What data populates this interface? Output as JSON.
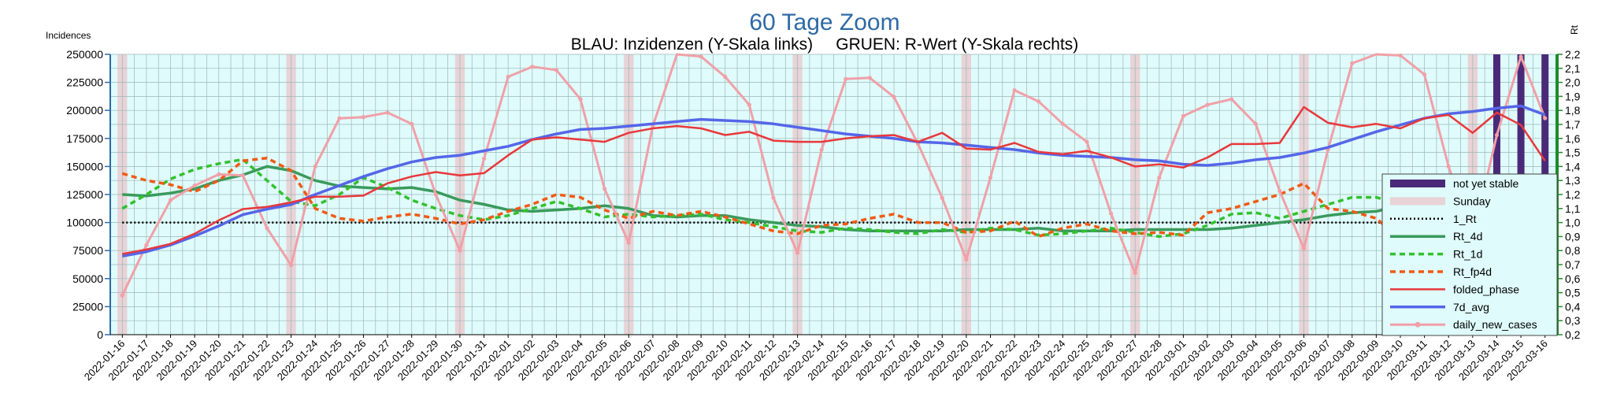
{
  "chart_data": {
    "type": "line",
    "title": "60 Tage Zoom",
    "subtitle": "BLAU: Inzidenzen (Y-Skala links)     GRUEN: R-Wert (Y-Skala rechts)",
    "ylabel_left": "Incidences",
    "ylabel_right": "Rt",
    "ylim_left": [
      0,
      250000
    ],
    "yticks_left": [
      "0",
      "25000",
      "50000",
      "75000",
      "100000",
      "125000",
      "150000",
      "175000",
      "200000",
      "225000",
      "250000"
    ],
    "ylim_right": [
      0.2,
      2.2
    ],
    "yticks_right": [
      "0,2",
      "0,3",
      "0,4",
      "0,5",
      "0,6",
      "0,7",
      "0,8",
      "0,9",
      "1,0",
      "1,1",
      "1,2",
      "1,3",
      "1,4",
      "1,5",
      "1,6",
      "1,7",
      "1,8",
      "1,9",
      "2,0",
      "2,1",
      "2,2"
    ],
    "grid": true,
    "legend_position": "right",
    "categories": [
      "2022-01-16",
      "2022-01-17",
      "2022-01-18",
      "2022-01-19",
      "2022-01-20",
      "2022-01-21",
      "2022-01-22",
      "2022-01-23",
      "2022-01-24",
      "2022-01-25",
      "2022-01-26",
      "2022-01-27",
      "2022-01-28",
      "2022-01-29",
      "2022-01-30",
      "2022-01-31",
      "2022-02-01",
      "2022-02-02",
      "2022-02-03",
      "2022-02-04",
      "2022-02-05",
      "2022-02-06",
      "2022-02-07",
      "2022-02-08",
      "2022-02-09",
      "2022-02-10",
      "2022-02-11",
      "2022-02-12",
      "2022-02-13",
      "2022-02-14",
      "2022-02-15",
      "2022-02-16",
      "2022-02-17",
      "2022-02-18",
      "2022-02-19",
      "2022-02-20",
      "2022-02-21",
      "2022-02-22",
      "2022-02-23",
      "2022-02-24",
      "2022-02-25",
      "2022-02-26",
      "2022-02-27",
      "2022-02-28",
      "2022-03-01",
      "2022-03-02",
      "2022-03-03",
      "2022-03-04",
      "2022-03-05",
      "2022-03-06",
      "2022-03-07",
      "2022-03-08",
      "2022-03-09",
      "2022-03-10",
      "2022-03-11",
      "2022-03-12",
      "2022-03-13",
      "2022-03-14",
      "2022-03-15",
      "2022-03-16"
    ],
    "sundays": [
      "2022-01-16",
      "2022-01-23",
      "2022-01-30",
      "2022-02-06",
      "2022-02-13",
      "2022-02-20",
      "2022-02-27",
      "2022-03-06",
      "2022-03-13"
    ],
    "not_yet_stable": [
      "2022-03-14",
      "2022-03-15",
      "2022-03-16"
    ],
    "series": [
      {
        "name": "1_Rt",
        "axis": "right",
        "color": "#000000",
        "style": "dotted",
        "values": [
          1.0,
          1.0,
          1.0,
          1.0,
          1.0,
          1.0,
          1.0,
          1.0,
          1.0,
          1.0,
          1.0,
          1.0,
          1.0,
          1.0,
          1.0,
          1.0,
          1.0,
          1.0,
          1.0,
          1.0,
          1.0,
          1.0,
          1.0,
          1.0,
          1.0,
          1.0,
          1.0,
          1.0,
          1.0,
          1.0,
          1.0,
          1.0,
          1.0,
          1.0,
          1.0,
          1.0,
          1.0,
          1.0,
          1.0,
          1.0,
          1.0,
          1.0,
          1.0,
          1.0,
          1.0,
          1.0,
          1.0,
          1.0,
          1.0,
          1.0,
          1.0,
          1.0,
          1.0,
          1.0,
          1.0,
          1.0,
          1.0,
          1.0,
          1.0,
          1.0
        ]
      },
      {
        "name": "Rt_4d",
        "axis": "right",
        "color": "#3a9a5c",
        "style": "solid",
        "values": [
          1.2,
          1.19,
          1.21,
          1.24,
          1.3,
          1.34,
          1.4,
          1.37,
          1.3,
          1.26,
          1.25,
          1.24,
          1.25,
          1.22,
          1.16,
          1.13,
          1.09,
          1.08,
          1.09,
          1.1,
          1.12,
          1.1,
          1.05,
          1.04,
          1.05,
          1.05,
          1.02,
          1.0,
          0.98,
          0.97,
          0.95,
          0.94,
          0.94,
          0.94,
          0.94,
          0.95,
          0.95,
          0.95,
          0.96,
          0.94,
          0.94,
          0.94,
          0.95,
          0.95,
          0.95,
          0.95,
          0.96,
          0.98,
          1.0,
          1.02,
          1.05,
          1.07,
          1.08,
          1.12,
          1.14,
          1.15,
          1.13,
          1.09,
          1.05,
          1.02
        ]
      },
      {
        "name": "Rt_1d",
        "axis": "right",
        "color": "#33c12d",
        "style": "dashed",
        "values": [
          1.1,
          1.2,
          1.31,
          1.38,
          1.42,
          1.45,
          1.3,
          1.15,
          1.12,
          1.2,
          1.32,
          1.25,
          1.16,
          1.1,
          1.05,
          1.02,
          1.05,
          1.1,
          1.15,
          1.1,
          1.04,
          1.06,
          1.04,
          1.05,
          1.06,
          1.02,
          1.0,
          0.97,
          0.94,
          0.93,
          0.96,
          0.95,
          0.93,
          0.92,
          0.95,
          0.93,
          0.96,
          0.95,
          0.91,
          0.92,
          0.94,
          0.96,
          0.93,
          0.9,
          0.92,
          0.98,
          1.06,
          1.07,
          1.03,
          1.08,
          1.13,
          1.18,
          1.18,
          1.13,
          1.14,
          1.14,
          1.08,
          1.04,
          1.06,
          0.86
        ]
      },
      {
        "name": "Rt_fp4d",
        "axis": "right",
        "color": "#f05a14",
        "style": "dashed",
        "values": [
          1.35,
          1.3,
          1.27,
          1.22,
          1.3,
          1.44,
          1.46,
          1.37,
          1.1,
          1.03,
          1.01,
          1.04,
          1.06,
          1.03,
          0.99,
          1.02,
          1.08,
          1.13,
          1.2,
          1.18,
          1.09,
          1.03,
          1.08,
          1.05,
          1.08,
          1.04,
          0.99,
          0.94,
          0.92,
          0.98,
          0.99,
          1.03,
          1.06,
          1.0,
          1.0,
          0.93,
          0.94,
          1.01,
          0.9,
          0.96,
          0.99,
          0.94,
          0.92,
          0.93,
          0.91,
          1.07,
          1.1,
          1.15,
          1.2,
          1.28,
          1.1,
          1.08,
          1.03,
          0.88,
          0.97,
          1.01,
          1.04,
          1.02,
          1.0,
          0.82
        ]
      },
      {
        "name": "folded_phase",
        "axis": "left",
        "color": "#e8383c",
        "style": "solid",
        "values": [
          72000,
          76000,
          81000,
          90000,
          102000,
          112000,
          114000,
          118000,
          123000,
          123000,
          124000,
          135000,
          141000,
          145000,
          142000,
          144000,
          160000,
          174000,
          176000,
          174000,
          172000,
          180000,
          184000,
          186000,
          184000,
          178000,
          181000,
          173000,
          172000,
          172000,
          175000,
          177000,
          178000,
          172000,
          180000,
          166000,
          165000,
          171000,
          163000,
          161000,
          164000,
          158000,
          150000,
          152000,
          149000,
          158000,
          170000,
          170000,
          171000,
          203000,
          189000,
          185000,
          188000,
          184000,
          193000,
          196000,
          180000,
          198000,
          187000,
          155000
        ]
      },
      {
        "name": "7d_avg",
        "axis": "left",
        "color": "#5566e8",
        "style": "solid",
        "values": [
          70000,
          74000,
          80000,
          88000,
          97000,
          107000,
          112000,
          116000,
          125000,
          133000,
          141000,
          148000,
          154000,
          158000,
          160000,
          164000,
          168000,
          174000,
          179000,
          183000,
          184000,
          186000,
          188000,
          190000,
          192000,
          191000,
          190000,
          188000,
          185000,
          182000,
          179000,
          177000,
          175000,
          172000,
          171000,
          169000,
          167000,
          165000,
          162000,
          160000,
          159000,
          158000,
          156000,
          155000,
          152000,
          151000,
          153000,
          156000,
          158000,
          162000,
          167000,
          174000,
          181000,
          187000,
          193000,
          197000,
          199000,
          202000,
          204000,
          196000
        ]
      },
      {
        "name": "daily_new_cases",
        "axis": "left",
        "color": "#f0a0a8",
        "style": "solid",
        "values": [
          35000,
          80000,
          120000,
          133000,
          143000,
          142000,
          95000,
          62000,
          150000,
          193000,
          194000,
          198000,
          188000,
          125000,
          75000,
          157000,
          230000,
          239000,
          236000,
          210000,
          130000,
          82000,
          186000,
          251000,
          248000,
          230000,
          205000,
          122000,
          73000,
          165000,
          228000,
          229000,
          212000,
          170000,
          122000,
          67000,
          140000,
          218000,
          208000,
          188000,
          172000,
          108000,
          55000,
          140000,
          195000,
          205000,
          210000,
          188000,
          128000,
          77000,
          165000,
          242000,
          255000,
          249000,
          232000,
          150000,
          86000,
          178000,
          248000,
          193000
        ]
      }
    ]
  },
  "legend": [
    {
      "key": "not_yet_stable",
      "label": "not yet stable"
    },
    {
      "key": "sunday",
      "label": "Sunday"
    },
    {
      "key": "1_Rt",
      "label": "1_Rt"
    },
    {
      "key": "Rt_4d",
      "label": "Rt_4d"
    },
    {
      "key": "Rt_1d",
      "label": "Rt_1d"
    },
    {
      "key": "Rt_fp4d",
      "label": "Rt_fp4d"
    },
    {
      "key": "folded_phase",
      "label": "folded_phase"
    },
    {
      "key": "7d_avg",
      "label": "7d_avg"
    },
    {
      "key": "daily_new_cases",
      "label": "daily_new_cases"
    }
  ],
  "colors": {
    "plot_background": "#dffbfb",
    "grid": "#9db6b6",
    "sunday_band": "#e8d3d6",
    "not_yet_stable": "#4a2a78",
    "left_axis": "#2e6aa5",
    "right_axis": "#1f8a2a"
  }
}
